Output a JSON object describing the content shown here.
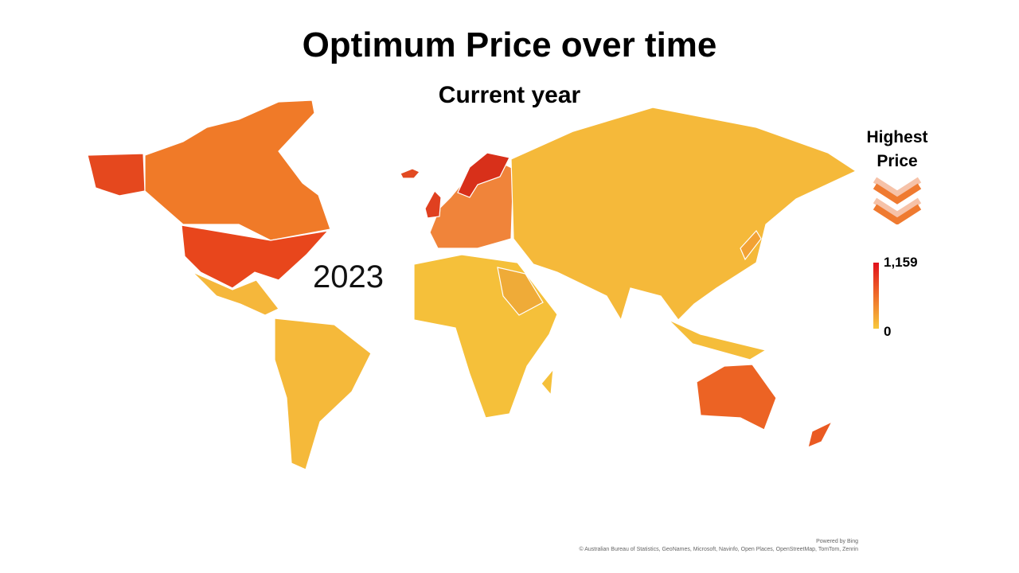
{
  "title": "Optimum Price over time",
  "subtitle": "Current year",
  "year_label": "2023",
  "legend": {
    "heading": "Highest Price",
    "max_label": "1,159",
    "min_label": "0",
    "max_color": "#e0101c",
    "min_color": "#f7c83c",
    "icon": "double-chevron-down-icon"
  },
  "footer": {
    "powered_by": "Powered by Bing",
    "attribution": "© Australian Bureau of Statistics, GeoNames, Microsoft, Navinfo, Open Places, OpenStreetMap, TomTom, Zenrin"
  },
  "regions": [
    {
      "name": "alaska",
      "color": "#e5481e"
    },
    {
      "name": "canada",
      "color": "#f07a28"
    },
    {
      "name": "usa",
      "color": "#e8461c"
    },
    {
      "name": "central-america",
      "color": "#f5b73b"
    },
    {
      "name": "south-america",
      "color": "#f5b93a"
    },
    {
      "name": "europe",
      "color": "#f0843a"
    },
    {
      "name": "norway",
      "color": "#d8301a"
    },
    {
      "name": "iceland",
      "color": "#e24a22"
    },
    {
      "name": "uk-ireland",
      "color": "#e04020"
    },
    {
      "name": "africa",
      "color": "#f5c03a"
    },
    {
      "name": "arabia",
      "color": "#efab38"
    },
    {
      "name": "asia",
      "color": "#f5b93a"
    },
    {
      "name": "southeast-asia",
      "color": "#f5bd3a"
    },
    {
      "name": "japan",
      "color": "#f2a234"
    },
    {
      "name": "australia",
      "color": "#ec6324"
    },
    {
      "name": "new-zealand",
      "color": "#ea5a22"
    },
    {
      "name": "madagascar",
      "color": "#f5c03a"
    }
  ]
}
